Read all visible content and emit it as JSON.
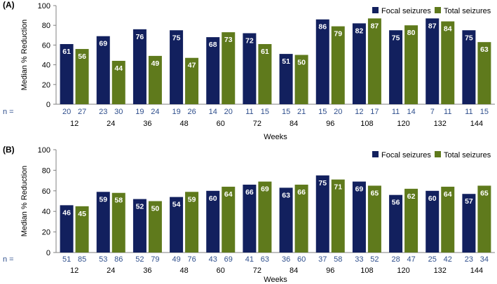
{
  "chart_data": [
    {
      "panel_label": "(A)",
      "type": "bar",
      "ylabel": "Median % Reduction",
      "xlabel": "Weeks",
      "ylim": [
        0,
        100
      ],
      "yticks": [
        0,
        20,
        40,
        60,
        80,
        100
      ],
      "grid": false,
      "legend_position": "top-right",
      "n_label": "n =",
      "categories": [
        "12",
        "24",
        "36",
        "48",
        "60",
        "72",
        "84",
        "96",
        "108",
        "120",
        "132",
        "144"
      ],
      "series": [
        {
          "name": "Focal seizures",
          "color": "#12205e",
          "values": [
            61,
            69,
            76,
            75,
            68,
            72,
            51,
            86,
            82,
            75,
            87,
            75
          ],
          "n": [
            "20",
            "23",
            "19",
            "19",
            "14",
            "11",
            "15",
            "15",
            "12",
            "11",
            "7",
            "11"
          ]
        },
        {
          "name": "Total seizures",
          "color": "#5f7a1c",
          "values": [
            56,
            44,
            49,
            47,
            73,
            61,
            50,
            79,
            87,
            80,
            84,
            63
          ],
          "n": [
            "27",
            "30",
            "24",
            "26",
            "20",
            "15",
            "21",
            "20",
            "17",
            "14",
            "11",
            "15"
          ]
        }
      ]
    },
    {
      "panel_label": "(B)",
      "type": "bar",
      "ylabel": "Median % Reduction",
      "xlabel": "Weeks",
      "ylim": [
        0,
        100
      ],
      "yticks": [
        0,
        20,
        40,
        60,
        80,
        100
      ],
      "grid": false,
      "legend_position": "top-right",
      "n_label": "n =",
      "categories": [
        "12",
        "24",
        "36",
        "48",
        "60",
        "72",
        "84",
        "96",
        "108",
        "120",
        "132",
        "144"
      ],
      "series": [
        {
          "name": "Focal seizures",
          "color": "#12205e",
          "values": [
            46,
            59,
            52,
            54,
            60,
            66,
            63,
            75,
            69,
            56,
            60,
            57
          ],
          "n": [
            "51",
            "53",
            "52",
            "49",
            "43",
            "41",
            "36",
            "37",
            "33",
            "28",
            "25",
            "23"
          ]
        },
        {
          "name": "Total seizures",
          "color": "#5f7a1c",
          "values": [
            45,
            58,
            50,
            59,
            64,
            69,
            66,
            71,
            65,
            62,
            64,
            65
          ],
          "n": [
            "85",
            "86",
            "79",
            "76",
            "69",
            "63",
            "60",
            "58",
            "52",
            "47",
            "42",
            "34"
          ]
        }
      ]
    }
  ],
  "colors": {
    "axis": "#808080",
    "text": "#000000",
    "n_text": "#2e4e8c",
    "bar_label": "#ffffff"
  }
}
